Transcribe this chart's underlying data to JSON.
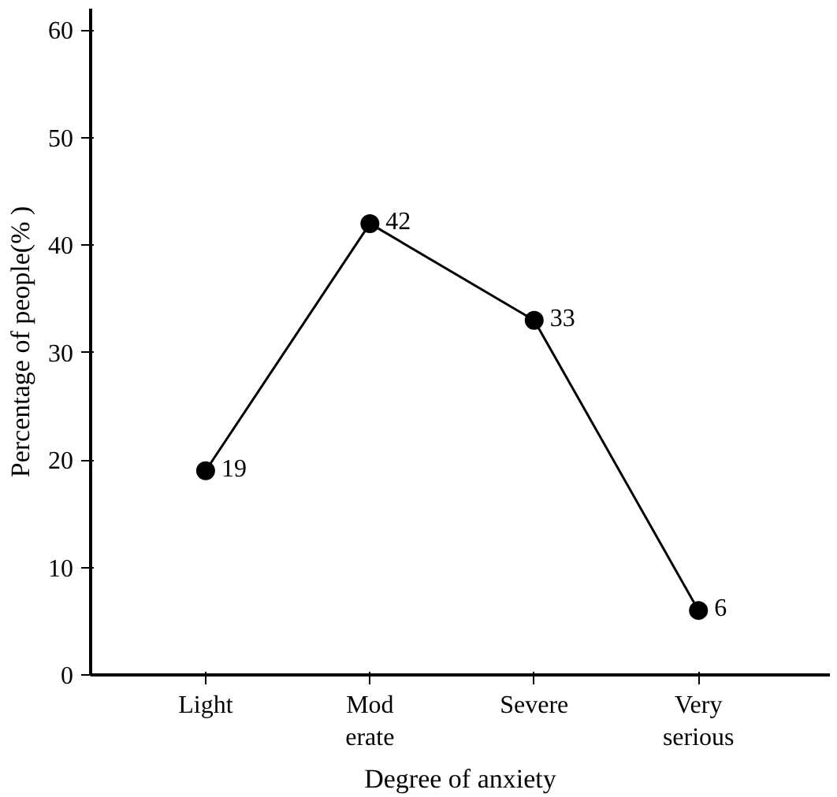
{
  "chart_data": {
    "type": "line",
    "xlabel": "Degree of anxiety",
    "ylabel": "Percentage of people(% )",
    "categories": [
      "Light",
      "Mod erate",
      "Severe",
      "Very serious"
    ],
    "series": [
      {
        "color": "#000000",
        "values": [
          19,
          42,
          33,
          6
        ]
      }
    ],
    "ylim": [
      0,
      62
    ],
    "yticks": [
      0,
      10,
      20,
      30,
      40,
      50,
      60
    ],
    "marker": "circle",
    "line_style": "solid",
    "data_labels": true
  }
}
